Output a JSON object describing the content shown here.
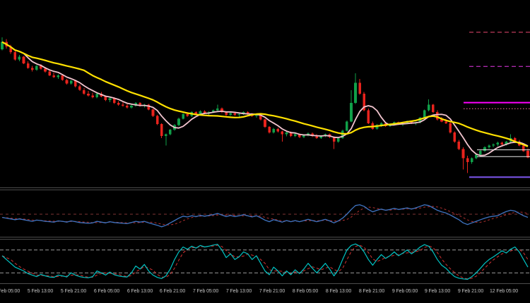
{
  "chart_data": {
    "type": "candlestick",
    "title": "",
    "y_scale_note": "relative 0-100, no price axis labels visible",
    "background": "#000000",
    "main": {
      "type": "candlestick",
      "up_color": "#10A049",
      "down_color": "#E8231D",
      "candles": [
        [
          74,
          80.5,
          73.5,
          78
        ],
        [
          78,
          79.5,
          74.5,
          75.5
        ],
        [
          75.5,
          76.5,
          71.5,
          72.5
        ],
        [
          72.5,
          73.5,
          68,
          68.5
        ],
        [
          68.5,
          71,
          67.5,
          70
        ],
        [
          70,
          70.5,
          66,
          66.5
        ],
        [
          66.5,
          67.5,
          63.5,
          64
        ],
        [
          64,
          65,
          62,
          63
        ],
        [
          63,
          65.5,
          62.5,
          65
        ],
        [
          65,
          66,
          63,
          63.5
        ],
        [
          63.5,
          64.5,
          61.5,
          62
        ],
        [
          62,
          63,
          59.5,
          60
        ],
        [
          60,
          61.5,
          58.5,
          59
        ],
        [
          59,
          60.5,
          58,
          60
        ],
        [
          60,
          60.5,
          57,
          57.5
        ],
        [
          57.5,
          58,
          55,
          55.5
        ],
        [
          55.5,
          57.5,
          55,
          57
        ],
        [
          57,
          57.5,
          53.5,
          54
        ],
        [
          54,
          55,
          51.5,
          52
        ],
        [
          52,
          53,
          49.5,
          50
        ],
        [
          50,
          51.5,
          48.5,
          49
        ],
        [
          49,
          50.5,
          47.5,
          48
        ],
        [
          48,
          50.5,
          47.5,
          50
        ],
        [
          50,
          51,
          48,
          48.5
        ],
        [
          48.5,
          49,
          46,
          46.5
        ],
        [
          46.5,
          48,
          45.5,
          47.5
        ],
        [
          47.5,
          48,
          44.5,
          45
        ],
        [
          45,
          46,
          43.5,
          44
        ],
        [
          44,
          45.5,
          43,
          43.5
        ],
        [
          43.5,
          44.5,
          42,
          42.5
        ],
        [
          42.5,
          44,
          42,
          43.5
        ],
        [
          43.5,
          45.5,
          43,
          45
        ],
        [
          45,
          45.5,
          43,
          43.5
        ],
        [
          43.5,
          44.5,
          42.5,
          44
        ],
        [
          44,
          44.5,
          41,
          41.5
        ],
        [
          41.5,
          42,
          37.5,
          38
        ],
        [
          38,
          38.5,
          33,
          33.5
        ],
        [
          33.5,
          34,
          26,
          27
        ],
        [
          27,
          28.5,
          22,
          28
        ],
        [
          28,
          31,
          27.5,
          30.5
        ],
        [
          30.5,
          33.5,
          30,
          33
        ],
        [
          33,
          37,
          32.5,
          36.5
        ],
        [
          36.5,
          39.5,
          36,
          39
        ],
        [
          39,
          40,
          37.5,
          38
        ],
        [
          38,
          40.5,
          37.5,
          40
        ],
        [
          40,
          40.5,
          38.5,
          39
        ],
        [
          39,
          41,
          38.5,
          40.5
        ],
        [
          40.5,
          41,
          39,
          39.5
        ],
        [
          39.5,
          40.5,
          38.5,
          40
        ],
        [
          40,
          41.5,
          39.5,
          41
        ],
        [
          41,
          44,
          40.5,
          42
        ],
        [
          42,
          42.5,
          39.5,
          40
        ],
        [
          40,
          40.5,
          38,
          38.5
        ],
        [
          38.5,
          40,
          38,
          39.5
        ],
        [
          39.5,
          40,
          38,
          38.5
        ],
        [
          38.5,
          39.5,
          37.5,
          39
        ],
        [
          39,
          40.5,
          38.5,
          40
        ],
        [
          40,
          40.5,
          38.5,
          39
        ],
        [
          39,
          39.5,
          37.5,
          38
        ],
        [
          38,
          39,
          37,
          38.5
        ],
        [
          38.5,
          39,
          35.5,
          36
        ],
        [
          36,
          36.5,
          31.5,
          32
        ],
        [
          32,
          32.5,
          28.5,
          29
        ],
        [
          29,
          31.5,
          28.5,
          31
        ],
        [
          31,
          31.5,
          29,
          29.5
        ],
        [
          29.5,
          30,
          24,
          28
        ],
        [
          28,
          29.5,
          27,
          29
        ],
        [
          29,
          29.5,
          26.5,
          27
        ],
        [
          27,
          28.5,
          26.5,
          28
        ],
        [
          28,
          28.5,
          26,
          26.5
        ],
        [
          26.5,
          28,
          26,
          27.5
        ],
        [
          27.5,
          29,
          27,
          28.5
        ],
        [
          28.5,
          29,
          26.5,
          27
        ],
        [
          27,
          28,
          25.5,
          26
        ],
        [
          26,
          27.5,
          25.5,
          27
        ],
        [
          27,
          28.5,
          26.5,
          28
        ],
        [
          28,
          28.5,
          26,
          26.5
        ],
        [
          26.5,
          27,
          20,
          24
        ],
        [
          24,
          26.5,
          23.5,
          26
        ],
        [
          26,
          30.5,
          25.5,
          30
        ],
        [
          30,
          35.5,
          29.5,
          35
        ],
        [
          35,
          52,
          34.5,
          45
        ],
        [
          45,
          61,
          44.5,
          56
        ],
        [
          56,
          58,
          49.5,
          50
        ],
        [
          50,
          51,
          40.5,
          41
        ],
        [
          41,
          42,
          33.5,
          34
        ],
        [
          34,
          35,
          30.5,
          31
        ],
        [
          31,
          33.5,
          30.5,
          33
        ],
        [
          33,
          34.5,
          32,
          34
        ],
        [
          34,
          34.5,
          32,
          32.5
        ],
        [
          32.5,
          34,
          32,
          33.5
        ],
        [
          33.5,
          35,
          33,
          34.5
        ],
        [
          34.5,
          35,
          33,
          33.5
        ],
        [
          33.5,
          34.5,
          32.5,
          34
        ],
        [
          34,
          35.5,
          33.5,
          35
        ],
        [
          35,
          35.5,
          33.5,
          34
        ],
        [
          34,
          35,
          33,
          34.5
        ],
        [
          34.5,
          37.5,
          34,
          37
        ],
        [
          37,
          41.5,
          36.5,
          41
        ],
        [
          41,
          47,
          40.5,
          44
        ],
        [
          44,
          44.5,
          39.5,
          40
        ],
        [
          40,
          41,
          35.5,
          36
        ],
        [
          36,
          37.5,
          34.5,
          35
        ],
        [
          35,
          36.5,
          33.5,
          34
        ],
        [
          34,
          34.5,
          28.5,
          29
        ],
        [
          29,
          29.5,
          23.5,
          24
        ],
        [
          24,
          25,
          19.5,
          20
        ],
        [
          20,
          21,
          9,
          15
        ],
        [
          15,
          16.5,
          7,
          13
        ],
        [
          13,
          15.5,
          12,
          15
        ],
        [
          15,
          17.5,
          14.5,
          17
        ],
        [
          17,
          19.5,
          16.5,
          19
        ],
        [
          19,
          21.5,
          18.5,
          21
        ],
        [
          21,
          22.5,
          20,
          22
        ],
        [
          22,
          23,
          21,
          22.5
        ],
        [
          22.5,
          24,
          21.5,
          23.5
        ],
        [
          23.5,
          24,
          22,
          22.5
        ],
        [
          22.5,
          24.5,
          22,
          24
        ],
        [
          24,
          28,
          23.5,
          26
        ],
        [
          26,
          26.5,
          23.5,
          24
        ],
        [
          24,
          25,
          21.5,
          22
        ],
        [
          22,
          23,
          18.5,
          19
        ],
        [
          19,
          20.5,
          15,
          15.5
        ]
      ],
      "overlays": [
        {
          "name": "ma-fast-pink",
          "type": "sma",
          "period": 6,
          "color": "#F2C4CE",
          "width": 1.8
        },
        {
          "name": "ma-slow-yellow",
          "type": "sma",
          "period": 20,
          "color": "#FFE100",
          "width": 2.2
        }
      ],
      "levels": [
        {
          "price": 83.3,
          "color": "#E8476F",
          "style": "dashed",
          "width": 1,
          "from_x": 0.885
        },
        {
          "price": 64.8,
          "color": "#E838E8",
          "style": "dashed",
          "width": 1,
          "from_x": 0.885
        },
        {
          "price": 45.2,
          "color": "#FF00FF",
          "style": "solid",
          "width": 2,
          "from_x": 0.875
        },
        {
          "price": 41.9,
          "color": "#FF77AA",
          "style": "dotted",
          "width": 1,
          "from_x": 0.875
        },
        {
          "price": 19.6,
          "color": "#E8E8E8",
          "style": "solid",
          "width": 1,
          "from_x": 0.9
        },
        {
          "price": 15.9,
          "color": "#E8E8E8",
          "style": "solid",
          "width": 1,
          "from_x": 0.9
        },
        {
          "price": 4.8,
          "color": "#7E57F0",
          "style": "solid",
          "width": 2,
          "from_x": 0.885
        }
      ]
    },
    "momentum": {
      "type": "line",
      "range": [
        0,
        100
      ],
      "color": "#3F74C2",
      "width": 1.3,
      "center": {
        "value": 50,
        "color": "#803333",
        "style": "dashed"
      },
      "signal": {
        "period": 5,
        "color": "#B03030",
        "style": "dashed"
      },
      "values": [
        42,
        40,
        38,
        36,
        38,
        36,
        34,
        32,
        35,
        34,
        32,
        31,
        30,
        33,
        32,
        30,
        33,
        31,
        29,
        28,
        27,
        28,
        32,
        30,
        28,
        31,
        29,
        28,
        27,
        26,
        29,
        32,
        30,
        32,
        28,
        25,
        22,
        18,
        22,
        28,
        34,
        40,
        45,
        43,
        46,
        44,
        47,
        45,
        47,
        49,
        52,
        48,
        44,
        47,
        44,
        46,
        49,
        46,
        43,
        46,
        41,
        35,
        31,
        36,
        33,
        30,
        34,
        31,
        34,
        31,
        34,
        37,
        34,
        31,
        34,
        37,
        33,
        28,
        33,
        40,
        50,
        62,
        72,
        74,
        70,
        62,
        56,
        60,
        63,
        60,
        62,
        65,
        62,
        64,
        66,
        63,
        66,
        70,
        74,
        72,
        66,
        60,
        56,
        53,
        48,
        42,
        36,
        28,
        24,
        28,
        32,
        36,
        40,
        43,
        45,
        46,
        52,
        57,
        60,
        58,
        52,
        46,
        42
      ]
    },
    "stochastic": {
      "type": "line",
      "range": [
        0,
        100
      ],
      "k_color": "#00C4C4",
      "d_color": "#D23333",
      "d_period": 3,
      "levels": [
        {
          "value": 80,
          "color": "#9C9C9C",
          "style": "dashed"
        },
        {
          "value": 20,
          "color": "#9C9C9C",
          "style": "dashed"
        }
      ],
      "k_values": [
        65,
        55,
        45,
        35,
        30,
        25,
        18,
        14,
        10,
        16,
        12,
        9,
        8,
        14,
        12,
        9,
        20,
        14,
        10,
        8,
        7,
        10,
        25,
        20,
        14,
        22,
        15,
        12,
        10,
        9,
        20,
        38,
        30,
        42,
        25,
        14,
        8,
        5,
        12,
        30,
        55,
        75,
        88,
        82,
        90,
        85,
        92,
        88,
        90,
        93,
        95,
        80,
        60,
        70,
        55,
        62,
        75,
        70,
        55,
        65,
        45,
        25,
        15,
        35,
        25,
        12,
        25,
        15,
        28,
        18,
        30,
        45,
        32,
        20,
        32,
        45,
        30,
        12,
        28,
        55,
        80,
        92,
        96,
        90,
        75,
        55,
        40,
        55,
        68,
        58,
        65,
        75,
        65,
        72,
        80,
        70,
        78,
        88,
        94,
        90,
        75,
        55,
        40,
        32,
        20,
        10,
        6,
        4,
        3,
        10,
        20,
        32,
        45,
        55,
        62,
        70,
        78,
        72,
        82,
        88,
        75,
        55,
        35
      ]
    },
    "x_axis": {
      "labels": [
        "5 Feb 05:00",
        "5 Feb 13:00",
        "5 Feb 21:00",
        "6 Feb 05:00",
        "6 Feb 13:00",
        "6 Feb 21:00",
        "7 Feb 05:00",
        "7 Feb 13:00",
        "7 Feb 21:00",
        "8 Feb 05:00",
        "8 Feb 13:00",
        "8 Feb 21:00",
        "9 Feb 05:00",
        "9 Feb 13:00",
        "9 Feb 21:00",
        "12 Feb 05:00"
      ]
    }
  }
}
